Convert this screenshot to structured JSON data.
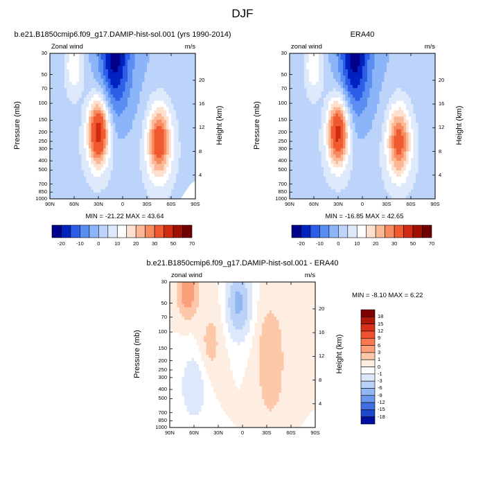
{
  "figure": {
    "title": "DJF"
  },
  "chart_data": [
    {
      "type": "heatmap",
      "title": "b.e21.B1850cmip6.f09_g17.DAMIP-hist-sol.001 (yrs 1990-2014)",
      "left_label": "Zonal wind",
      "right_label": "m/s",
      "xlabel": "",
      "ylabel": "Pressure (mb)",
      "y2label": "Height (km)",
      "x_ticks": [
        "90N",
        "60N",
        "30N",
        "0",
        "30S",
        "60S",
        "90S"
      ],
      "y_ticks": [
        "30",
        "50",
        "70",
        "100",
        "150",
        "200",
        "250",
        "300",
        "400",
        "500",
        "700",
        "850",
        "1000"
      ],
      "y2_ticks": [
        "20",
        "16",
        "12",
        "8",
        "4"
      ],
      "stats": "MIN = -21.22  MAX =  43.64",
      "min": -21.22,
      "max": 43.64,
      "colorbar": {
        "labels": [
          "-20",
          "-10",
          "0",
          "10",
          "20",
          "30",
          "50",
          "70"
        ],
        "colors": [
          "#00008b",
          "#0022c0",
          "#2c5ee8",
          "#5a8ef2",
          "#8cb4f8",
          "#bcd4fa",
          "#deeafb",
          "#ffffff",
          "#fde0cd",
          "#fbb896",
          "#f88a60",
          "#f05a30",
          "#d02a10",
          "#a01000",
          "#700000"
        ]
      }
    },
    {
      "type": "heatmap",
      "title": "ERA40",
      "left_label": "zonal wind",
      "right_label": "m/s",
      "xlabel": "",
      "ylabel": "Pressure (mb)",
      "y2label": "Height (km)",
      "x_ticks": [
        "90N",
        "60N",
        "30N",
        "0",
        "30S",
        "60S",
        "90S"
      ],
      "y_ticks": [
        "30",
        "50",
        "70",
        "100",
        "150",
        "200",
        "250",
        "300",
        "400",
        "500",
        "700",
        "850",
        "1000"
      ],
      "y2_ticks": [
        "20",
        "16",
        "12",
        "8",
        "4"
      ],
      "stats": "MIN = -16.85  MAX =  42.65",
      "min": -16.85,
      "max": 42.65,
      "colorbar": {
        "labels": [
          "-20",
          "-10",
          "0",
          "10",
          "20",
          "30",
          "50",
          "70"
        ],
        "colors": [
          "#00008b",
          "#0022c0",
          "#2c5ee8",
          "#5a8ef2",
          "#8cb4f8",
          "#bcd4fa",
          "#deeafb",
          "#ffffff",
          "#fde0cd",
          "#fbb896",
          "#f88a60",
          "#f05a30",
          "#d02a10",
          "#a01000",
          "#700000"
        ]
      }
    },
    {
      "type": "heatmap",
      "title": "b.e21.B1850cmip6.f09_g17.DAMIP-hist-sol.001 - ERA40",
      "left_label": "zonal wind",
      "right_label": "m/s",
      "xlabel": "",
      "ylabel": "Pressure (mb)",
      "y2label": "Height (km)",
      "x_ticks": [
        "90N",
        "60N",
        "30N",
        "0",
        "30S",
        "60S",
        "90S"
      ],
      "y_ticks": [
        "30",
        "50",
        "70",
        "100",
        "150",
        "200",
        "250",
        "300",
        "400",
        "500",
        "700",
        "850",
        "1000"
      ],
      "y2_ticks": [
        "20",
        "16",
        "12",
        "8",
        "4"
      ],
      "stats": "MIN = -8.10  MAX =   6.22",
      "min": -8.1,
      "max": 6.22,
      "colorbar": {
        "labels": [
          "18",
          "15",
          "12",
          "9",
          "6",
          "3",
          "1",
          "0",
          "-1",
          "-3",
          "-6",
          "-9",
          "-12",
          "-15",
          "-18"
        ],
        "colors": [
          "#800000",
          "#b01808",
          "#d83018",
          "#f05030",
          "#f87850",
          "#fba07a",
          "#fdc8aa",
          "#feeee2",
          "#ffffff",
          "#dde9fa",
          "#bad2f7",
          "#92b6f2",
          "#6a96ec",
          "#3f6fe0",
          "#1e48cc",
          "#000ea0"
        ]
      }
    }
  ]
}
